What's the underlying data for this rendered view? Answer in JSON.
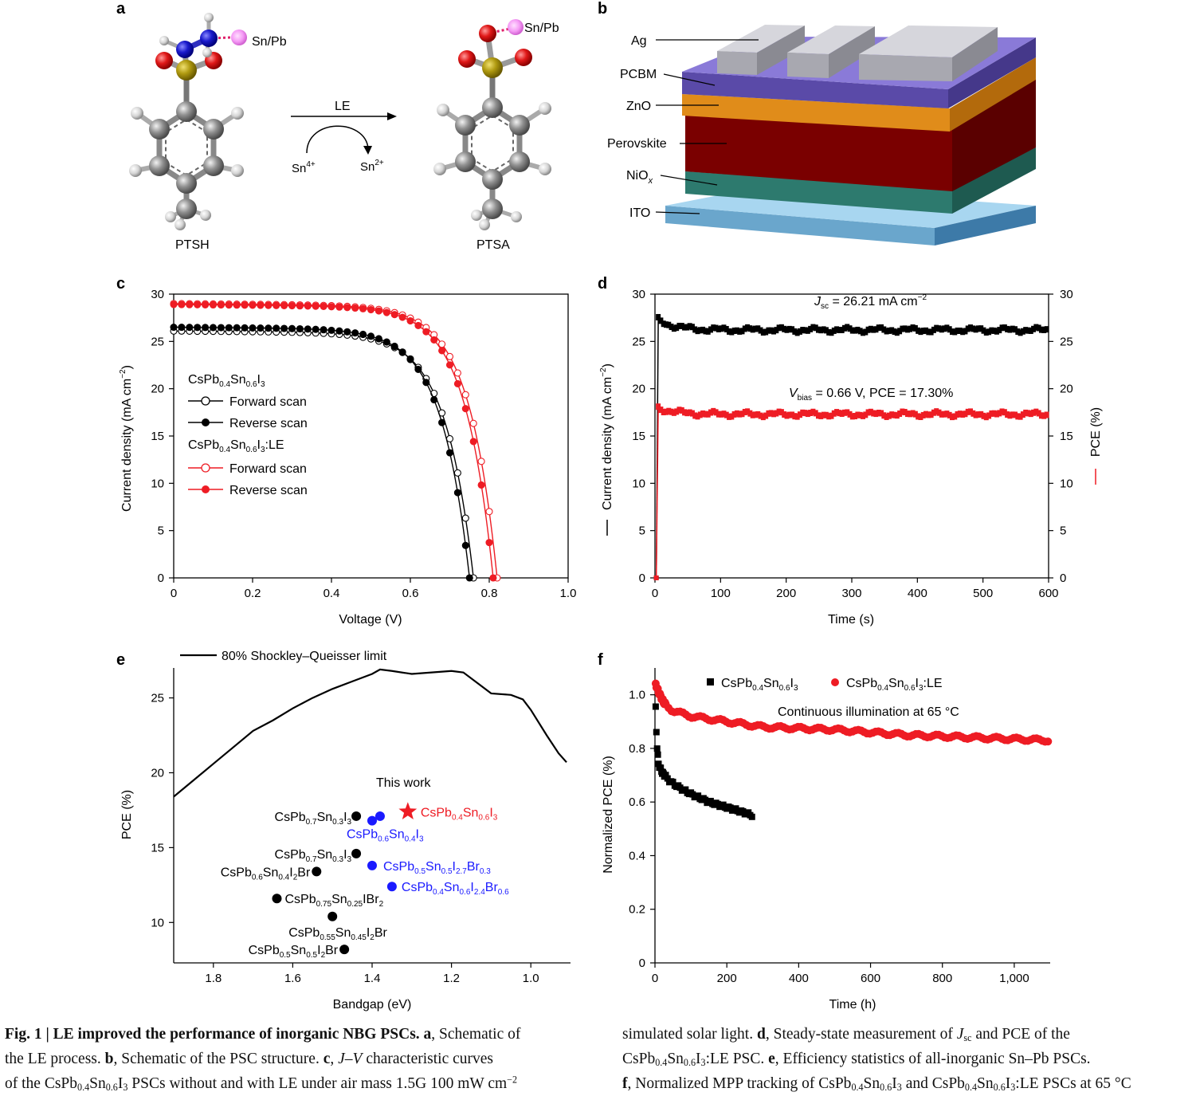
{
  "panel_labels": [
    "a",
    "b",
    "c",
    "d",
    "e",
    "f"
  ],
  "colors": {
    "black": "#000000",
    "red": "#ee1c24",
    "blue": "#1a1aff",
    "redline": "#e8000b"
  },
  "panel_a": {
    "left_molecule": "PTSH",
    "right_molecule": "PTSA",
    "reagent_left": "Sn/Pb",
    "reagent_right": "Sn/Pb",
    "arrow_label": "LE",
    "sn_in": "Sn",
    "sn_in_sup": "4+",
    "sn_out": "Sn",
    "sn_out_sup": "2+"
  },
  "panel_b": {
    "layers": [
      "Ag",
      "PCBM",
      "ZnO",
      "Perovskite",
      "NiO",
      "ITO"
    ],
    "nio_sub": "x"
  },
  "chart_data": [
    {
      "panel": "c",
      "type": "line",
      "xlabel": "Voltage (V)",
      "ylabel": "Current density (mA cm",
      "ylabel_sup": "−2",
      "ylabel_end": ")",
      "xlim": [
        0,
        1.0
      ],
      "ylim": [
        0,
        30
      ],
      "xticks": [
        "0",
        "0.2",
        "0.4",
        "0.6",
        "0.8",
        "1.0"
      ],
      "yticks": [
        "0",
        "5",
        "10",
        "15",
        "20",
        "25",
        "30"
      ],
      "legend_groups": [
        {
          "base": "CsPb",
          "s1": "0.4",
          "m": "Sn",
          "s2": "0.6",
          "t": "I",
          "s3": "3",
          "end": ""
        },
        {
          "base": "CsPb",
          "s1": "0.4",
          "m": "Sn",
          "s2": "0.6",
          "t": "I",
          "s3": "3",
          "end": ":LE"
        }
      ],
      "series": [
        {
          "name": "Forward scan",
          "group": 0,
          "color": "#000000",
          "marker": "open",
          "jsc": 26.1,
          "voc": 0.76,
          "vmpp": 0.57,
          "jmpp": 20.2
        },
        {
          "name": "Reverse scan",
          "group": 0,
          "color": "#000000",
          "marker": "filled",
          "jsc": 26.5,
          "voc": 0.75,
          "vmpp": 0.6,
          "jmpp": 20.9
        },
        {
          "name": "Forward scan",
          "group": 1,
          "color": "#ee1c24",
          "marker": "open",
          "jsc": 29.0,
          "voc": 0.82,
          "vmpp": 0.7,
          "jmpp": 24.2
        },
        {
          "name": "Reverse scan",
          "group": 1,
          "color": "#ee1c24",
          "marker": "filled",
          "jsc": 28.9,
          "voc": 0.81,
          "vmpp": 0.7,
          "jmpp": 24.0
        }
      ]
    },
    {
      "panel": "d",
      "type": "line",
      "xlabel": "Time (s)",
      "ylabel_left": "Current density (mA cm",
      "ylabel_left_sup": "−2",
      "ylabel_left_end": ")",
      "ylabel_right": "PCE (%)",
      "xlim": [
        0,
        600
      ],
      "ylim": [
        0,
        30
      ],
      "xticks": [
        "0",
        "100",
        "200",
        "300",
        "400",
        "500",
        "600"
      ],
      "yticks": [
        "0",
        "5",
        "10",
        "15",
        "20",
        "25",
        "30"
      ],
      "annotation_jsc": {
        "pre": "J",
        "sub": "sc",
        "post": " = 26.21 mA cm",
        "sup": "−2"
      },
      "annotation_pce": {
        "pre": "V",
        "sub": "bias",
        "post": " = 0.66 V, PCE = 17.30%"
      },
      "series": [
        {
          "name": "Jsc",
          "color": "#000000",
          "marker": "square",
          "steady": 26.21,
          "start": 27.3
        },
        {
          "name": "PCE",
          "color": "#ee1c24",
          "marker": "square",
          "steady": 17.3,
          "start": 18.0
        }
      ]
    },
    {
      "panel": "e",
      "type": "scatter",
      "xlabel": "Bandgap (eV)",
      "ylabel": "PCE (%)",
      "xlim": [
        1.9,
        0.9
      ],
      "ylim": [
        7.3,
        27
      ],
      "xticks": [
        1.8,
        1.6,
        1.4,
        1.2,
        1.0
      ],
      "yticks": [
        10,
        15,
        20,
        25
      ],
      "legend": "80% Shockley–Queisser limit",
      "this_work_label": "This work",
      "sq_curve": [
        [
          1.9,
          18.4
        ],
        [
          1.85,
          19.5
        ],
        [
          1.8,
          20.6
        ],
        [
          1.75,
          21.7
        ],
        [
          1.7,
          22.8
        ],
        [
          1.65,
          23.5
        ],
        [
          1.6,
          24.3
        ],
        [
          1.55,
          25.0
        ],
        [
          1.5,
          25.6
        ],
        [
          1.45,
          26.1
        ],
        [
          1.4,
          26.6
        ],
        [
          1.38,
          26.9
        ],
        [
          1.35,
          26.8
        ],
        [
          1.3,
          26.6
        ],
        [
          1.25,
          26.7
        ],
        [
          1.2,
          26.8
        ],
        [
          1.17,
          26.7
        ],
        [
          1.13,
          25.9
        ],
        [
          1.1,
          25.3
        ],
        [
          1.05,
          25.2
        ],
        [
          1.02,
          24.9
        ],
        [
          1.0,
          24.2
        ],
        [
          0.96,
          22.5
        ],
        [
          0.93,
          21.3
        ],
        [
          0.91,
          20.7
        ]
      ],
      "points": [
        {
          "x": 1.31,
          "y": 17.4,
          "color": "#ee1c24",
          "marker": "star",
          "label": [
            [
              "CsPb",
              ""
            ],
            [
              "0.4",
              "sub"
            ],
            [
              "Sn",
              ""
            ],
            [
              "0.6",
              "sub"
            ],
            [
              "I",
              ""
            ],
            [
              "3",
              "sub"
            ]
          ]
        },
        {
          "x": 1.44,
          "y": 17.1,
          "color": "#000000",
          "marker": "dot",
          "label": [
            [
              "CsPb",
              ""
            ],
            [
              "0.7",
              "sub"
            ],
            [
              "Sn",
              ""
            ],
            [
              "0.3",
              "sub"
            ],
            [
              "I",
              ""
            ],
            [
              "3",
              "sub"
            ]
          ]
        },
        {
          "x": 1.38,
          "y": 17.1,
          "color": "#1a1aff",
          "marker": "dot",
          "label": []
        },
        {
          "x": 1.4,
          "y": 16.8,
          "color": "#1a1aff",
          "marker": "dot",
          "label": [
            [
              "CsPb",
              ""
            ],
            [
              "0.6",
              "sub"
            ],
            [
              "Sn",
              ""
            ],
            [
              "0.4",
              "sub"
            ],
            [
              "I",
              ""
            ],
            [
              "3",
              "sub"
            ]
          ]
        },
        {
          "x": 1.44,
          "y": 14.6,
          "color": "#000000",
          "marker": "dot",
          "label": [
            [
              "CsPb",
              ""
            ],
            [
              "0.7",
              "sub"
            ],
            [
              "Sn",
              ""
            ],
            [
              "0.3",
              "sub"
            ],
            [
              "I",
              ""
            ],
            [
              "3",
              "sub"
            ]
          ]
        },
        {
          "x": 1.4,
          "y": 13.8,
          "color": "#1a1aff",
          "marker": "dot",
          "label": [
            [
              "CsPb",
              ""
            ],
            [
              "0.5",
              "sub"
            ],
            [
              "Sn",
              ""
            ],
            [
              "0.5",
              "sub"
            ],
            [
              "I",
              ""
            ],
            [
              "2.7",
              "sub"
            ],
            [
              "Br",
              ""
            ],
            [
              "0.3",
              "sub"
            ]
          ]
        },
        {
          "x": 1.54,
          "y": 13.4,
          "color": "#000000",
          "marker": "dot",
          "label": [
            [
              "CsPb",
              ""
            ],
            [
              "0.6",
              "sub"
            ],
            [
              "Sn",
              ""
            ],
            [
              "0.4",
              "sub"
            ],
            [
              "I",
              ""
            ],
            [
              "2",
              "sub"
            ],
            [
              "Br",
              ""
            ]
          ]
        },
        {
          "x": 1.35,
          "y": 12.4,
          "color": "#1a1aff",
          "marker": "dot",
          "label": [
            [
              "CsPb",
              ""
            ],
            [
              "0.4",
              "sub"
            ],
            [
              "Sn",
              ""
            ],
            [
              "0.6",
              "sub"
            ],
            [
              "I",
              ""
            ],
            [
              "2.4",
              "sub"
            ],
            [
              "Br",
              ""
            ],
            [
              "0.6",
              "sub"
            ]
          ]
        },
        {
          "x": 1.64,
          "y": 11.6,
          "color": "#000000",
          "marker": "dot",
          "label": [
            [
              "CsPb",
              ""
            ],
            [
              "0.75",
              "sub"
            ],
            [
              "Sn",
              ""
            ],
            [
              "0.25",
              "sub"
            ],
            [
              "IBr",
              ""
            ],
            [
              "2",
              "sub"
            ]
          ]
        },
        {
          "x": 1.5,
          "y": 10.4,
          "color": "#000000",
          "marker": "dot",
          "label": [
            [
              "CsPb",
              ""
            ],
            [
              "0.55",
              "sub"
            ],
            [
              "Sn",
              ""
            ],
            [
              "0.45",
              "sub"
            ],
            [
              "I",
              ""
            ],
            [
              "2",
              "sub"
            ],
            [
              "Br",
              ""
            ]
          ]
        },
        {
          "x": 1.47,
          "y": 8.2,
          "color": "#000000",
          "marker": "dot",
          "label": [
            [
              "CsPb",
              ""
            ],
            [
              "0.5",
              "sub"
            ],
            [
              "Sn",
              ""
            ],
            [
              "0.5",
              "sub"
            ],
            [
              "I",
              ""
            ],
            [
              "2",
              "sub"
            ],
            [
              "Br",
              ""
            ]
          ]
        }
      ]
    },
    {
      "panel": "f",
      "type": "scatter",
      "xlabel": "Time (h)",
      "ylabel": "Normalized PCE (%)",
      "xlim": [
        0,
        1100
      ],
      "ylim": [
        0,
        1.1
      ],
      "xticks": [
        "0",
        "200",
        "400",
        "600",
        "800",
        "1,000"
      ],
      "yticks": [
        "0",
        "0.2",
        "0.4",
        "0.6",
        "0.8",
        "1.0"
      ],
      "annotation": "Continuous illumination at 65 °C",
      "series": [
        {
          "name": [
            [
              "CsPb",
              ""
            ],
            [
              "0.4",
              "sub"
            ],
            [
              "Sn",
              ""
            ],
            [
              "0.6",
              "sub"
            ],
            [
              "I",
              ""
            ],
            [
              "3",
              "sub"
            ]
          ],
          "color": "#000000",
          "marker": "square",
          "keypoints": [
            [
              2,
              0.95
            ],
            [
              5,
              0.82
            ],
            [
              10,
              0.74
            ],
            [
              20,
              0.71
            ],
            [
              40,
              0.68
            ],
            [
              60,
              0.66
            ],
            [
              100,
              0.63
            ],
            [
              150,
              0.6
            ],
            [
              200,
              0.58
            ],
            [
              250,
              0.56
            ],
            [
              270,
              0.55
            ]
          ]
        },
        {
          "name": [
            [
              "CsPb",
              ""
            ],
            [
              "0.4",
              "sub"
            ],
            [
              "Sn",
              ""
            ],
            [
              "0.6",
              "sub"
            ],
            [
              "I",
              ""
            ],
            [
              "3",
              "sub"
            ],
            [
              ":LE",
              ""
            ]
          ],
          "color": "#ee1c24",
          "marker": "dot",
          "keypoints": [
            [
              2,
              1.04
            ],
            [
              10,
              1.01
            ],
            [
              25,
              0.97
            ],
            [
              50,
              0.94
            ],
            [
              100,
              0.92
            ],
            [
              200,
              0.9
            ],
            [
              300,
              0.88
            ],
            [
              500,
              0.87
            ],
            [
              700,
              0.85
            ],
            [
              900,
              0.84
            ],
            [
              1100,
              0.83
            ]
          ]
        }
      ]
    }
  ],
  "caption": {
    "fig_label": "Fig. 1 | LE improved the performance of inorganic NBG PSCs.",
    "a_text": "Schematic of",
    "line2_a": "the LE process.",
    "b_text": "Schematic of the PSC structure.",
    "c_jv": "J–V",
    "c_text": "characteristic curves",
    "line3_a": "of the",
    "line3_b": "PSCs without and with LE under air mass 1.5G 100 mW cm",
    "line3_sup": "−2",
    "r1": "simulated solar light.",
    "d_text": "Steady-state measurement of",
    "d_jsc": "J",
    "d_sc": "sc",
    "d_rest": "and PCE of the",
    "r2_b": ":LE PSC.",
    "e_text": "Efficiency statistics of all-inorganic Sn–Pb PSCs.",
    "f_text": "Normalized MPP tracking of",
    "f_and": "and",
    "f_rest": ":LE PSCs at 65 °C"
  }
}
